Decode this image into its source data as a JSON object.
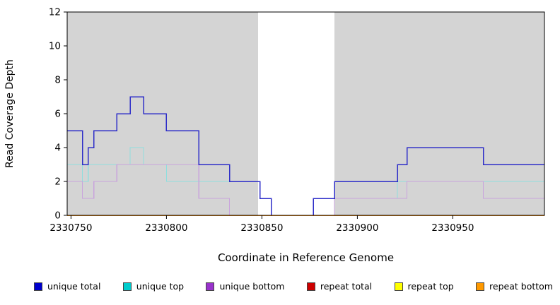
{
  "chart_data": {
    "type": "line",
    "step": true,
    "title": "",
    "xlabel": "Coordinate in Reference Genome",
    "ylabel": "Read Coverage Depth",
    "xlim": [
      2330748,
      2330998
    ],
    "ylim": [
      0,
      12
    ],
    "x_ticks": [
      2330750,
      2330800,
      2330850,
      2330900,
      2330950
    ],
    "y_ticks": [
      0,
      2,
      4,
      6,
      8,
      10,
      12
    ],
    "grid": false,
    "legend_position": "bottom",
    "plot_background": "#ffffff",
    "shaded_regions": [
      {
        "from": 2330748,
        "to": 2330848,
        "color": "#d4d4d4"
      },
      {
        "from": 2330888,
        "to": 2330998,
        "color": "#d4d4d4"
      }
    ],
    "series": [
      {
        "name": "unique total",
        "swatch_color": "#0000cd",
        "line_color": "#2d2dc8",
        "line_width": 1.5,
        "points": [
          [
            2330748,
            5
          ],
          [
            2330756,
            3
          ],
          [
            2330759,
            4
          ],
          [
            2330762,
            5
          ],
          [
            2330774,
            6
          ],
          [
            2330781,
            7
          ],
          [
            2330788,
            6
          ],
          [
            2330800,
            5
          ],
          [
            2330817,
            3
          ],
          [
            2330833,
            2
          ],
          [
            2330849,
            1
          ],
          [
            2330855,
            0
          ],
          [
            2330877,
            1
          ],
          [
            2330888,
            2
          ],
          [
            2330921,
            3
          ],
          [
            2330926,
            4
          ],
          [
            2330966,
            3
          ]
        ]
      },
      {
        "name": "unique top",
        "swatch_color": "#00cdcd",
        "line_color": "#8fdede",
        "line_width": 1.2,
        "points": [
          [
            2330748,
            3
          ],
          [
            2330756,
            2
          ],
          [
            2330759,
            3
          ],
          [
            2330781,
            4
          ],
          [
            2330788,
            3
          ],
          [
            2330800,
            2
          ],
          [
            2330849,
            1
          ],
          [
            2330855,
            0
          ],
          [
            2330877,
            1
          ],
          [
            2330921,
            2
          ]
        ]
      },
      {
        "name": "unique bottom",
        "swatch_color": "#9932cc",
        "line_color": "#c9a3dd",
        "line_width": 1.2,
        "points": [
          [
            2330748,
            2
          ],
          [
            2330756,
            1
          ],
          [
            2330762,
            2
          ],
          [
            2330774,
            3
          ],
          [
            2330817,
            1
          ],
          [
            2330833,
            0
          ],
          [
            2330888,
            1
          ],
          [
            2330926,
            2
          ],
          [
            2330966,
            1
          ]
        ]
      },
      {
        "name": "repeat total",
        "swatch_color": "#cd0000",
        "line_color": "#cd0000",
        "line_width": 1.2,
        "points": [
          [
            2330748,
            0
          ]
        ]
      },
      {
        "name": "repeat top",
        "swatch_color": "#ffff00",
        "line_color": "#ffff00",
        "line_width": 1.2,
        "points": [
          [
            2330748,
            0
          ]
        ]
      },
      {
        "name": "repeat bottom",
        "swatch_color": "#ff9900",
        "line_color": "#ff8c00",
        "line_width": 1.5,
        "points": [
          [
            2330748,
            0
          ]
        ]
      }
    ],
    "draw_order": [
      1,
      2,
      0,
      3,
      4,
      5
    ]
  }
}
